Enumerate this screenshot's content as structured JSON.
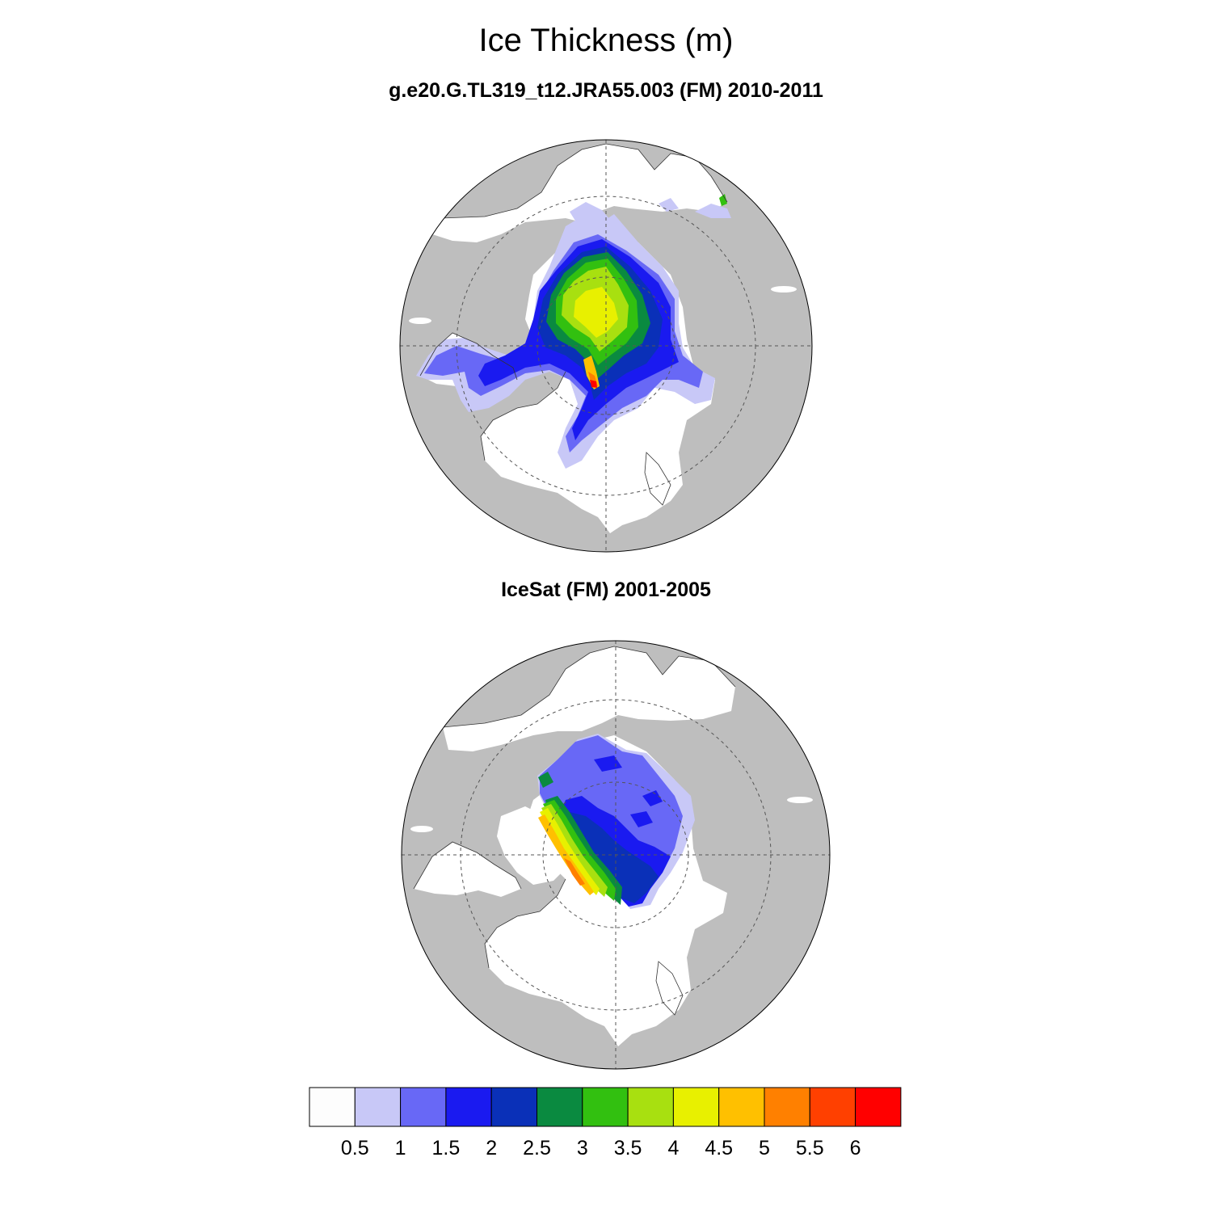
{
  "title": "Ice Thickness (m)",
  "panels": [
    {
      "title": "g.e20.G.TL319_t12.JRA55.003 (FM) 2010-2011"
    },
    {
      "title": "IceSat (FM) 2001-2005"
    }
  ],
  "colors": {
    "land": "#bebebe",
    "ocean": "#ffffff",
    "ice_bins": [
      "#fdfdfd",
      "#c8c8f7",
      "#6868f6",
      "#1a1af0",
      "#0a30b8",
      "#0a8a40",
      "#32c010",
      "#a8e010",
      "#e8f000",
      "#ffc000",
      "#ff8000",
      "#ff4000",
      "#ff0000"
    ]
  },
  "colorbar": {
    "labels": [
      "0.5",
      "1",
      "1.5",
      "2",
      "2.5",
      "3",
      "3.5",
      "4",
      "4.5",
      "5",
      "5.5",
      "6"
    ]
  }
}
